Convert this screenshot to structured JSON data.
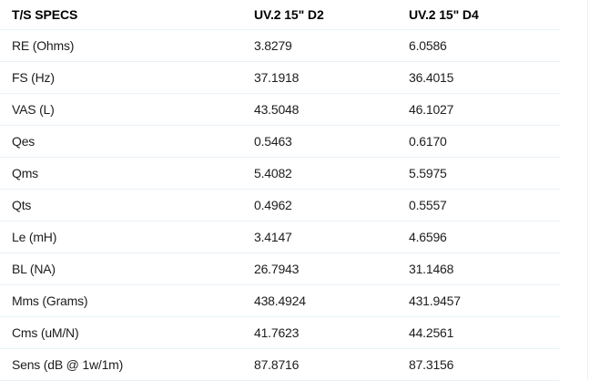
{
  "table": {
    "columns": [
      "T/S SPECS",
      "UV.2 15\" D2",
      "UV.2 15\" D4"
    ],
    "rows": [
      {
        "label": "RE (Ohms)",
        "d2": "3.8279",
        "d4": "6.0586"
      },
      {
        "label": "FS (Hz)",
        "d2": "37.1918",
        "d4": "36.4015"
      },
      {
        "label": "VAS (L)",
        "d2": "43.5048",
        "d4": "46.1027"
      },
      {
        "label": "Qes",
        "d2": "0.5463",
        "d4": "0.6170"
      },
      {
        "label": "Qms",
        "d2": "5.4082",
        "d4": "5.5975"
      },
      {
        "label": "Qts",
        "d2": "0.4962",
        "d4": "0.5557"
      },
      {
        "label": "Le (mH)",
        "d2": "3.4147",
        "d4": "4.6596"
      },
      {
        "label": "BL (NA)",
        "d2": "26.7943",
        "d4": "31.1468"
      },
      {
        "label": "Mms (Grams)",
        "d2": "438.4924",
        "d4": "431.9457"
      },
      {
        "label": "Cms (uM/N)",
        "d2": "41.7623",
        "d4": "44.2561"
      },
      {
        "label": "Sens (dB @ 1w/1m)",
        "d2": "87.8716",
        "d4": "87.3156"
      }
    ]
  },
  "chart_data": {
    "type": "table",
    "title": "T/S SPECS",
    "columns": [
      "T/S SPECS",
      "UV.2 15\" D2",
      "UV.2 15\" D4"
    ],
    "rows": [
      [
        "RE (Ohms)",
        3.8279,
        6.0586
      ],
      [
        "FS (Hz)",
        37.1918,
        36.4015
      ],
      [
        "VAS (L)",
        43.5048,
        46.1027
      ],
      [
        "Qes",
        0.5463,
        0.617
      ],
      [
        "Qms",
        5.4082,
        5.5975
      ],
      [
        "Qts",
        0.4962,
        0.5557
      ],
      [
        "Le (mH)",
        3.4147,
        4.6596
      ],
      [
        "BL (NA)",
        26.7943,
        31.1468
      ],
      [
        "Mms (Grams)",
        438.4924,
        431.9457
      ],
      [
        "Cms (uM/N)",
        41.7623,
        44.2561
      ],
      [
        "Sens (dB @ 1w/1m)",
        87.8716,
        87.3156
      ]
    ]
  },
  "colors": {
    "background": "#ffffff",
    "divider": "#e9f2f8",
    "header_text": "#000000",
    "body_text": "#1d1d1f"
  }
}
